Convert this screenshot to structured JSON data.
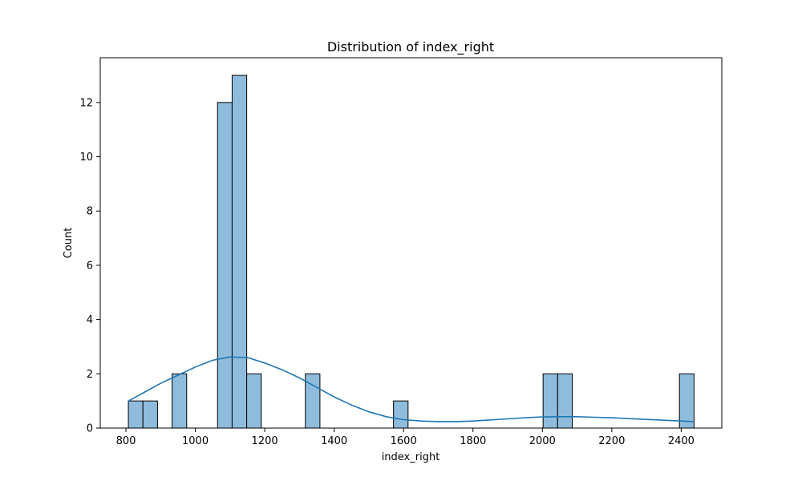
{
  "chart_data": {
    "type": "bar",
    "title": "Distribution of index_right",
    "xlabel": "index_right",
    "ylabel": "Count",
    "xlim": [
      726,
      2517
    ],
    "ylim": [
      0,
      13.65
    ],
    "xticks": [
      800,
      1000,
      1200,
      1400,
      1600,
      1800,
      2000,
      2200,
      2400
    ],
    "yticks": [
      0,
      2,
      4,
      6,
      8,
      10,
      12
    ],
    "grid": false,
    "bar_color": "#8fbcdc",
    "bar_edge_color": "#000000",
    "kde_color": "#1f77b4",
    "bins": [
      {
        "x0": 807,
        "x1": 849,
        "count": 1
      },
      {
        "x0": 849,
        "x1": 891,
        "count": 1
      },
      {
        "x0": 933,
        "x1": 975,
        "count": 2
      },
      {
        "x0": 1064,
        "x1": 1106,
        "count": 12
      },
      {
        "x0": 1106,
        "x1": 1148,
        "count": 13
      },
      {
        "x0": 1148,
        "x1": 1190,
        "count": 2
      },
      {
        "x0": 1317,
        "x1": 1359,
        "count": 2
      },
      {
        "x0": 1571,
        "x1": 1613,
        "count": 1
      },
      {
        "x0": 2002,
        "x1": 2044,
        "count": 2
      },
      {
        "x0": 2044,
        "x1": 2086,
        "count": 2
      },
      {
        "x0": 2395,
        "x1": 2437,
        "count": 2
      }
    ],
    "kde": {
      "x": [
        807,
        850,
        900,
        950,
        1000,
        1050,
        1100,
        1150,
        1200,
        1250,
        1300,
        1350,
        1400,
        1450,
        1500,
        1550,
        1600,
        1650,
        1700,
        1750,
        1800,
        1850,
        1900,
        1950,
        2000,
        2050,
        2100,
        2150,
        2200,
        2250,
        2300,
        2350,
        2400,
        2437
      ],
      "y": [
        1.0,
        1.3,
        1.65,
        1.95,
        2.25,
        2.5,
        2.62,
        2.6,
        2.4,
        2.15,
        1.85,
        1.5,
        1.15,
        0.85,
        0.6,
        0.42,
        0.31,
        0.26,
        0.24,
        0.24,
        0.26,
        0.3,
        0.34,
        0.38,
        0.41,
        0.42,
        0.42,
        0.4,
        0.38,
        0.35,
        0.32,
        0.29,
        0.26,
        0.24
      ]
    }
  }
}
